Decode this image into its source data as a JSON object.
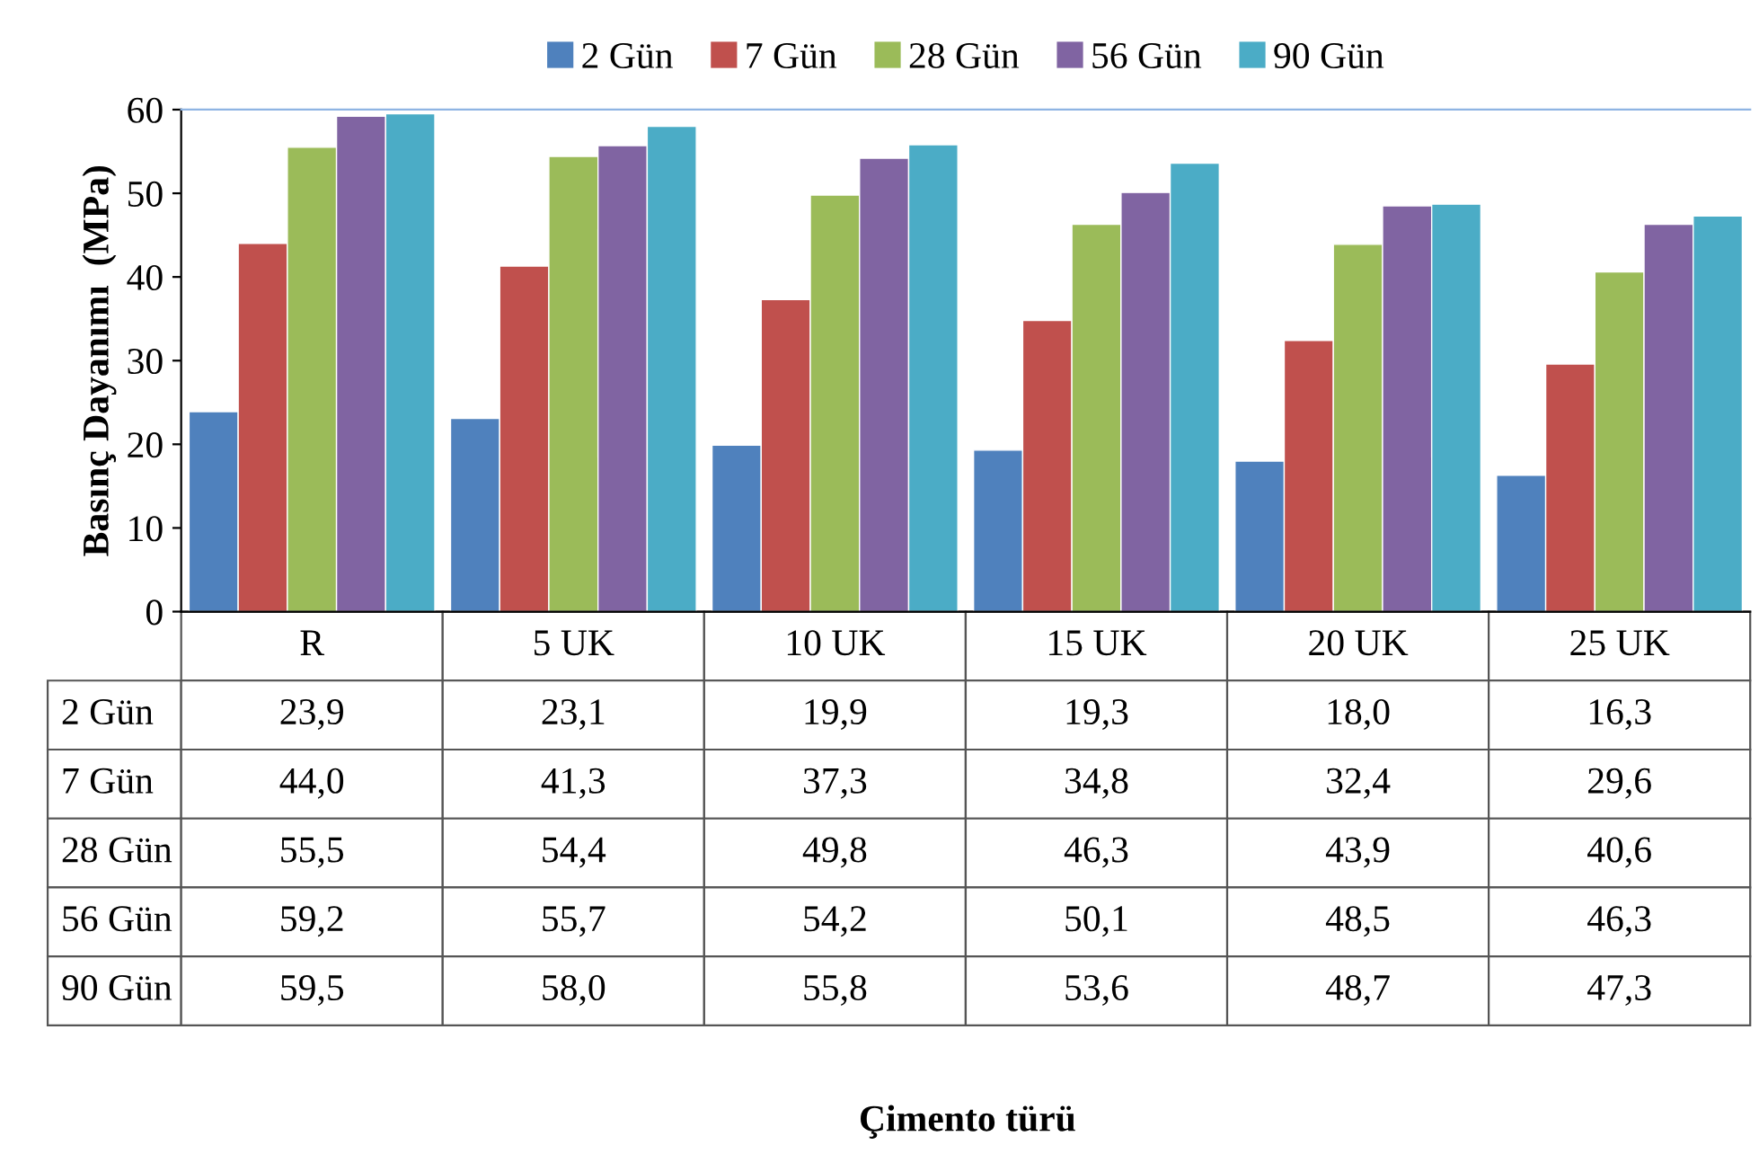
{
  "chart_data": {
    "type": "bar",
    "annotations": [
      "Çimento türü"
    ],
    "ylabel": "Basınç Dayanımı  (MPa)",
    "categories": [
      "R",
      "5 UK",
      "10 UK",
      "15 UK",
      "20 UK",
      "25 UK"
    ],
    "series": [
      {
        "name": "2 Gün",
        "color": "#4f81bd",
        "values": [
          23.9,
          23.1,
          19.9,
          19.3,
          18.0,
          16.3
        ],
        "value_labels": [
          "23,9",
          "23,1",
          "19,9",
          "19,3",
          "18,0",
          "16,3"
        ]
      },
      {
        "name": "7 Gün",
        "color": "#c0504d",
        "values": [
          44.0,
          41.3,
          37.3,
          34.8,
          32.4,
          29.6
        ],
        "value_labels": [
          "44,0",
          "41,3",
          "37,3",
          "34,8",
          "32,4",
          "29,6"
        ]
      },
      {
        "name": "28 Gün",
        "color": "#9bbb59",
        "values": [
          55.5,
          54.4,
          49.8,
          46.3,
          43.9,
          40.6
        ],
        "value_labels": [
          "55,5",
          "54,4",
          "49,8",
          "46,3",
          "43,9",
          "40,6"
        ]
      },
      {
        "name": "56 Gün",
        "color": "#8064a2",
        "values": [
          59.2,
          55.7,
          54.2,
          50.1,
          48.5,
          46.3
        ],
        "value_labels": [
          "59,2",
          "55,7",
          "54,2",
          "50,1",
          "48,5",
          "46,3"
        ]
      },
      {
        "name": "90 Gün",
        "color": "#4bacc6",
        "values": [
          59.5,
          58.0,
          55.8,
          53.6,
          48.7,
          47.3
        ],
        "value_labels": [
          "59,5",
          "58,0",
          "55,8",
          "53,6",
          "48,7",
          "47,3"
        ]
      }
    ],
    "ylim": [
      0,
      60
    ],
    "yticks": [
      0,
      10,
      20,
      30,
      40,
      50,
      60
    ],
    "grid": false,
    "legend": "top"
  }
}
